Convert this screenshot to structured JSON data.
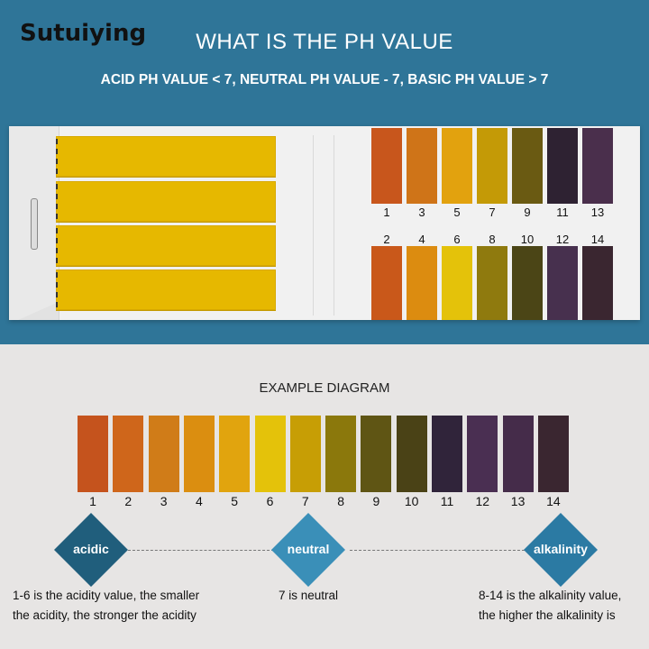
{
  "header": {
    "brand": "Sutuiying",
    "title": "WHAT IS THE PH VALUE",
    "subtitle": "ACID PH VALUE < 7, NEUTRAL PH VALUE - 7, BASIC PH VALUE > 7"
  },
  "chart_card": {
    "odd_row": [
      {
        "label": "1",
        "color": "#c8561c"
      },
      {
        "label": "3",
        "color": "#cf7418"
      },
      {
        "label": "5",
        "color": "#e2a20e"
      },
      {
        "label": "7",
        "color": "#c49a06"
      },
      {
        "label": "9",
        "color": "#6a5a12"
      },
      {
        "label": "11",
        "color": "#2e2232"
      },
      {
        "label": "13",
        "color": "#4a2f4c"
      }
    ],
    "even_row": [
      {
        "label": "2",
        "color": "#c9581a"
      },
      {
        "label": "4",
        "color": "#dc8c10"
      },
      {
        "label": "6",
        "color": "#e4c20a"
      },
      {
        "label": "8",
        "color": "#8f7a0e"
      },
      {
        "label": "10",
        "color": "#4b4516"
      },
      {
        "label": "12",
        "color": "#47304e"
      },
      {
        "label": "14",
        "color": "#3a2630"
      }
    ]
  },
  "example": {
    "title": "EXAMPLE DIAGRAM",
    "scale": [
      {
        "label": "1",
        "color": "#c5531d"
      },
      {
        "label": "2",
        "color": "#cf661b"
      },
      {
        "label": "3",
        "color": "#d07c18"
      },
      {
        "label": "4",
        "color": "#db8e10"
      },
      {
        "label": "5",
        "color": "#e1a40e"
      },
      {
        "label": "6",
        "color": "#e4c20a"
      },
      {
        "label": "7",
        "color": "#c79e05"
      },
      {
        "label": "8",
        "color": "#8b780c"
      },
      {
        "label": "9",
        "color": "#5f5514"
      },
      {
        "label": "10",
        "color": "#4a4216"
      },
      {
        "label": "11",
        "color": "#30243a"
      },
      {
        "label": "12",
        "color": "#4a2f52"
      },
      {
        "label": "13",
        "color": "#452c4a"
      },
      {
        "label": "14",
        "color": "#3a2630"
      }
    ],
    "markers": [
      {
        "label": "acidic",
        "color": "#205e7c",
        "desc": [
          "1-6 is the acidity value, the smaller",
          "the acidity, the stronger the acidity"
        ]
      },
      {
        "label": "neutral",
        "color": "#3a8fb8",
        "desc": [
          "7 is neutral"
        ]
      },
      {
        "label": "alkalinity",
        "color": "#2b7aa3",
        "desc": [
          "8-14 is the alkalinity value,",
          "the higher the alkalinity is"
        ]
      }
    ]
  }
}
